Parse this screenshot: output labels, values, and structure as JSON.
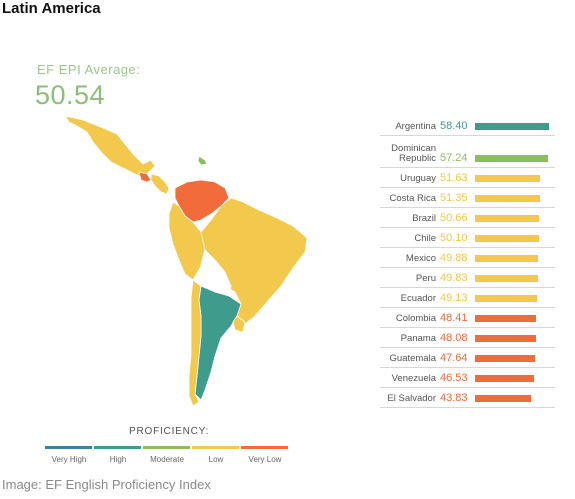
{
  "title": "Latin America",
  "average": {
    "label": "EF EPI Average:",
    "value": "50.54"
  },
  "colors": {
    "very_high": "#3f7fa3",
    "high": "#3f9c8c",
    "moderate": "#8bbf5e",
    "low": "#f2c94c",
    "very_low": "#f26b3a"
  },
  "ranking": [
    {
      "name": "Argentina",
      "score": "58.40",
      "value": 58.4,
      "level": "high"
    },
    {
      "name": "Dominican Republic",
      "score": "57.24",
      "value": 57.24,
      "level": "moderate"
    },
    {
      "name": "Uruguay",
      "score": "51.63",
      "value": 51.63,
      "level": "low"
    },
    {
      "name": "Costa Rica",
      "score": "51.35",
      "value": 51.35,
      "level": "low"
    },
    {
      "name": "Brazil",
      "score": "50.66",
      "value": 50.66,
      "level": "low"
    },
    {
      "name": "Chile",
      "score": "50.10",
      "value": 50.1,
      "level": "low"
    },
    {
      "name": "Mexico",
      "score": "49.88",
      "value": 49.88,
      "level": "low"
    },
    {
      "name": "Peru",
      "score": "49.83",
      "value": 49.83,
      "level": "low"
    },
    {
      "name": "Ecuador",
      "score": "49.13",
      "value": 49.13,
      "level": "low"
    },
    {
      "name": "Colombia",
      "score": "48.41",
      "value": 48.41,
      "level": "very_low"
    },
    {
      "name": "Panama",
      "score": "48.08",
      "value": 48.08,
      "level": "very_low"
    },
    {
      "name": "Guatemala",
      "score": "47.64",
      "value": 47.64,
      "level": "very_low"
    },
    {
      "name": "Venezuela",
      "score": "46.53",
      "value": 46.53,
      "level": "very_low"
    },
    {
      "name": "El Salvador",
      "score": "43.83",
      "value": 43.83,
      "level": "very_low"
    }
  ],
  "legend": {
    "title": "PROFICIENCY:",
    "items": [
      {
        "label": "Very High",
        "level": "very_high"
      },
      {
        "label": "High",
        "level": "high"
      },
      {
        "label": "Moderate",
        "level": "moderate"
      },
      {
        "label": "Low",
        "level": "low"
      },
      {
        "label": "Very Low",
        "level": "very_low"
      }
    ]
  },
  "map_regions": [
    {
      "region": "mexico",
      "level": "low"
    },
    {
      "region": "central-america-low",
      "level": "low"
    },
    {
      "region": "central-america-very-low",
      "level": "very_low"
    },
    {
      "region": "dominican-republic",
      "level": "moderate"
    },
    {
      "region": "colombia-venezuela",
      "level": "very_low"
    },
    {
      "region": "brazil",
      "level": "low"
    },
    {
      "region": "andes-west",
      "level": "low"
    },
    {
      "region": "paraguay-bolivia",
      "level": "none"
    },
    {
      "region": "argentina",
      "level": "high"
    },
    {
      "region": "chile",
      "level": "low"
    },
    {
      "region": "uruguay",
      "level": "low"
    }
  ],
  "caption": "Image: EF English Proficiency Index"
}
